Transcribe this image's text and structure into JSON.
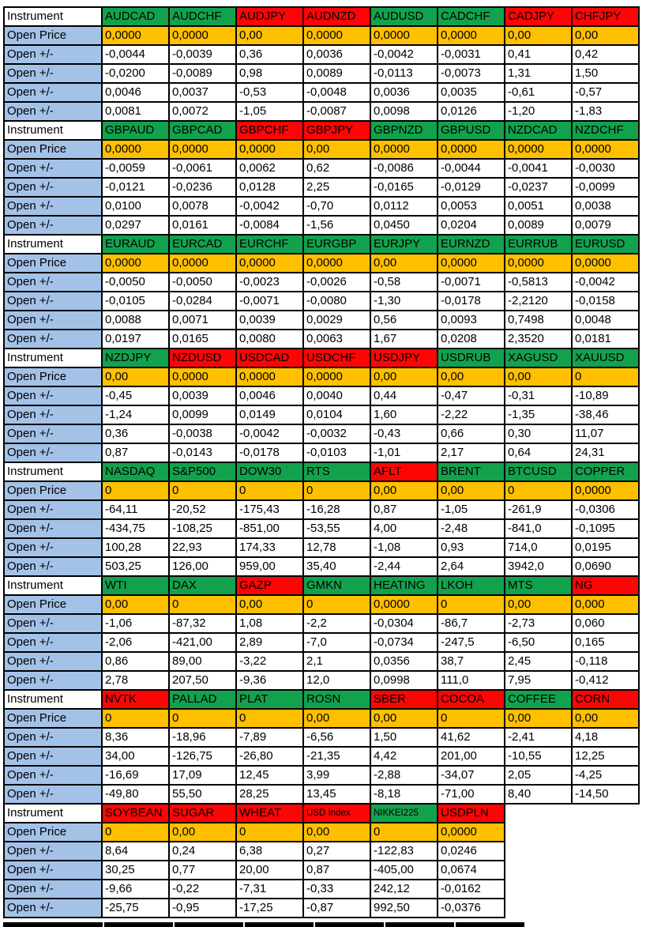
{
  "labels": {
    "instrument": "Instrument",
    "open_price": "Open Price",
    "open_delta": "Open +/-"
  },
  "colors": {
    "green": "#12A24D",
    "red": "#FB0505",
    "orange": "#FFC000",
    "blue": "#A4C2E8",
    "white": "#FFFFFF",
    "border": "#000000"
  },
  "blocks": [
    {
      "instruments": [
        {
          "name": "AUDCAD",
          "color": "green",
          "open_price": "0,0000",
          "deltas": [
            "-0,0044",
            "-0,0200",
            "0,0046",
            "0,0081"
          ]
        },
        {
          "name": "AUDCHF",
          "color": "green",
          "open_price": "0,0000",
          "deltas": [
            "-0,0039",
            "-0,0089",
            "0,0037",
            "0,0072"
          ]
        },
        {
          "name": "AUDJPY",
          "color": "red",
          "open_price": "0,00",
          "deltas": [
            "0,36",
            "0,98",
            "-0,53",
            "-1,05"
          ]
        },
        {
          "name": "AUDNZD",
          "color": "red",
          "open_price": "0,0000",
          "deltas": [
            "0,0036",
            "0,0089",
            "-0,0048",
            "-0,0087"
          ]
        },
        {
          "name": "AUDUSD",
          "color": "green",
          "open_price": "0,0000",
          "deltas": [
            "-0,0042",
            "-0,0113",
            "0,0036",
            "0,0098"
          ]
        },
        {
          "name": "CADCHF",
          "color": "green",
          "open_price": "0,0000",
          "deltas": [
            "-0,0031",
            "-0,0073",
            "0,0035",
            "0,0126"
          ]
        },
        {
          "name": "CADJPY",
          "color": "red",
          "open_price": "0,00",
          "deltas": [
            "0,41",
            "1,31",
            "-0,61",
            "-1,20"
          ]
        },
        {
          "name": "CHFJPY",
          "color": "red",
          "open_price": "0,00",
          "deltas": [
            "0,42",
            "1,50",
            "-0,57",
            "-1,83"
          ]
        }
      ]
    },
    {
      "instruments": [
        {
          "name": "GBPAUD",
          "color": "green",
          "open_price": "0,0000",
          "deltas": [
            "-0,0059",
            "-0,0121",
            "0,0100",
            "0,0297"
          ]
        },
        {
          "name": "GBPCAD",
          "color": "green",
          "open_price": "0,0000",
          "deltas": [
            "-0,0061",
            "-0,0236",
            "0,0078",
            "0,0161"
          ]
        },
        {
          "name": "GBPCHF",
          "color": "red",
          "open_price": "0,0000",
          "deltas": [
            "0,0062",
            "0,0128",
            "-0,0042",
            "-0,0084"
          ]
        },
        {
          "name": "GBPJPY",
          "color": "red",
          "open_price": "0,00",
          "deltas": [
            "0,62",
            "2,25",
            "-0,70",
            "-1,56"
          ]
        },
        {
          "name": "GBPNZD",
          "color": "green",
          "open_price": "0,0000",
          "deltas": [
            "-0,0086",
            "-0,0165",
            "0,0112",
            "0,0450"
          ]
        },
        {
          "name": "GBPUSD",
          "color": "green",
          "open_price": "0,0000",
          "deltas": [
            "-0,0044",
            "-0,0129",
            "0,0053",
            "0,0204"
          ]
        },
        {
          "name": "NZDCAD",
          "color": "green",
          "open_price": "0,0000",
          "deltas": [
            "-0,0041",
            "-0,0237",
            "0,0051",
            "0,0089"
          ]
        },
        {
          "name": "NZDCHF",
          "color": "green",
          "open_price": "0,0000",
          "deltas": [
            "-0,0030",
            "-0,0099",
            "0,0038",
            "0,0079"
          ]
        }
      ]
    },
    {
      "instruments": [
        {
          "name": "EURAUD",
          "color": "green",
          "open_price": "0,0000",
          "deltas": [
            "-0,0050",
            "-0,0105",
            "0,0088",
            "0,0197"
          ]
        },
        {
          "name": "EURCAD",
          "color": "green",
          "open_price": "0,0000",
          "deltas": [
            "-0,0050",
            "-0,0284",
            "0,0071",
            "0,0165"
          ]
        },
        {
          "name": "EURCHF",
          "color": "green",
          "open_price": "0,0000",
          "deltas": [
            "-0,0023",
            "-0,0071",
            "0,0039",
            "0,0080"
          ]
        },
        {
          "name": "EURGBP",
          "color": "green",
          "open_price": "0,0000",
          "deltas": [
            "-0,0026",
            "-0,0080",
            "0,0029",
            "0,0063"
          ]
        },
        {
          "name": "EURJPY",
          "color": "green",
          "open_price": "0,00",
          "deltas": [
            "-0,58",
            "-1,30",
            "0,56",
            "1,67"
          ]
        },
        {
          "name": "EURNZD",
          "color": "green",
          "open_price": "0,0000",
          "deltas": [
            "-0,0071",
            "-0,0178",
            "0,0093",
            "0,0208"
          ]
        },
        {
          "name": "EURRUB",
          "color": "green",
          "open_price": "0,0000",
          "deltas": [
            "-0,5813",
            "-2,2120",
            "0,7498",
            "2,3520"
          ]
        },
        {
          "name": "EURUSD",
          "color": "green",
          "open_price": "0,0000",
          "deltas": [
            "-0,0042",
            "-0,0158",
            "0,0048",
            "0,0181"
          ]
        }
      ]
    },
    {
      "instruments": [
        {
          "name": "NZDJPY",
          "color": "green",
          "open_price": "0,00",
          "deltas": [
            "-0,45",
            "-1,24",
            "0,36",
            "0,87"
          ]
        },
        {
          "name": "NZDUSD",
          "color": "red",
          "open_price": "0,0000",
          "deltas": [
            "0,0039",
            "0,0099",
            "-0,0038",
            "-0,0143"
          ]
        },
        {
          "name": "USDCAD",
          "color": "red",
          "open_price": "0,0000",
          "deltas": [
            "0,0046",
            "0,0149",
            "-0,0042",
            "-0,0178"
          ]
        },
        {
          "name": "USDCHF",
          "color": "red",
          "open_price": "0,0000",
          "deltas": [
            "0,0040",
            "0,0104",
            "-0,0032",
            "-0,0103"
          ]
        },
        {
          "name": "USDJPY",
          "color": "red",
          "open_price": "0,00",
          "deltas": [
            "0,44",
            "1,60",
            "-0,43",
            "-1,01"
          ]
        },
        {
          "name": "USDRUB",
          "color": "green",
          "open_price": "0,00",
          "deltas": [
            "-0,47",
            "-2,22",
            "0,66",
            "2,17"
          ]
        },
        {
          "name": "XAGUSD",
          "color": "green",
          "open_price": "0,00",
          "deltas": [
            "-0,31",
            "-1,35",
            "0,30",
            "0,64"
          ]
        },
        {
          "name": "XAUUSD",
          "color": "green",
          "open_price": "0",
          "deltas": [
            "-10,89",
            "-38,46",
            "11,07",
            "24,31"
          ]
        }
      ]
    },
    {
      "instruments": [
        {
          "name": "NASDAQ",
          "color": "green",
          "open_price": "0",
          "deltas": [
            "-64,11",
            "-434,75",
            "100,28",
            "503,25"
          ]
        },
        {
          "name": "S&P500",
          "color": "green",
          "open_price": "0",
          "deltas": [
            "-20,52",
            "-108,25",
            "22,93",
            "126,00"
          ]
        },
        {
          "name": "DOW30",
          "color": "green",
          "open_price": "0",
          "deltas": [
            "-175,43",
            "-851,00",
            "174,33",
            "959,00"
          ]
        },
        {
          "name": "RTS",
          "color": "green",
          "open_price": "0",
          "deltas": [
            "-16,28",
            "-53,55",
            "12,78",
            "35,40"
          ]
        },
        {
          "name": "AFLT",
          "color": "red",
          "open_price": "0,00",
          "deltas": [
            "0,87",
            "4,00",
            "-1,08",
            "-2,44"
          ]
        },
        {
          "name": "BRENT",
          "color": "green",
          "open_price": "0,00",
          "deltas": [
            "-1,05",
            "-2,48",
            "0,93",
            "2,64"
          ]
        },
        {
          "name": "BTCUSD",
          "color": "green",
          "open_price": "0",
          "deltas": [
            "-261,9",
            "-841,0",
            "714,0",
            "3942,0"
          ]
        },
        {
          "name": "COPPER",
          "color": "green",
          "open_price": "0,0000",
          "deltas": [
            "-0,0306",
            "-0,1095",
            "0,0195",
            "0,0690"
          ]
        }
      ]
    },
    {
      "instruments": [
        {
          "name": "WTI",
          "color": "green",
          "open_price": "0,00",
          "deltas": [
            "-1,06",
            "-2,06",
            "0,86",
            "2,78"
          ]
        },
        {
          "name": "DAX",
          "color": "green",
          "open_price": "0",
          "deltas": [
            "-87,32",
            "-421,00",
            "89,00",
            "207,50"
          ]
        },
        {
          "name": "GAZP",
          "color": "red",
          "open_price": "0,00",
          "deltas": [
            "1,08",
            "2,89",
            "-3,22",
            "-9,36"
          ]
        },
        {
          "name": "GMKN",
          "color": "green",
          "open_price": "0",
          "deltas": [
            "-2,2",
            "-7,0",
            "2,1",
            "12,0"
          ]
        },
        {
          "name": "HEATING",
          "color": "green",
          "open_price": "0,0000",
          "deltas": [
            "-0,0304",
            "-0,0734",
            "0,0356",
            "0,0998"
          ]
        },
        {
          "name": "LKOH",
          "color": "green",
          "open_price": "0",
          "deltas": [
            "-86,7",
            "-247,5",
            "38,7",
            "111,0"
          ]
        },
        {
          "name": "MTS",
          "color": "green",
          "open_price": "0,00",
          "deltas": [
            "-2,73",
            "-6,50",
            "2,45",
            "7,95"
          ]
        },
        {
          "name": "NG",
          "color": "red",
          "open_price": "0,000",
          "deltas": [
            "0,060",
            "0,165",
            "-0,118",
            "-0,412"
          ]
        }
      ]
    },
    {
      "instruments": [
        {
          "name": "NVTK",
          "color": "red",
          "open_price": "0",
          "deltas": [
            "8,36",
            "34,00",
            "-16,69",
            "-49,80"
          ]
        },
        {
          "name": "PALLAD",
          "color": "green",
          "open_price": "0",
          "deltas": [
            "-18,96",
            "-126,75",
            "17,09",
            "55,50"
          ]
        },
        {
          "name": "PLAT",
          "color": "green",
          "open_price": "0",
          "deltas": [
            "-7,89",
            "-26,80",
            "12,45",
            "28,25"
          ]
        },
        {
          "name": "ROSN",
          "color": "green",
          "open_price": "0,00",
          "deltas": [
            "-6,56",
            "-21,35",
            "3,99",
            "13,45"
          ]
        },
        {
          "name": "SBER",
          "color": "red",
          "open_price": "0,00",
          "deltas": [
            "1,50",
            "4,42",
            "-2,88",
            "-8,18"
          ]
        },
        {
          "name": "COCOA",
          "color": "red",
          "open_price": "0",
          "deltas": [
            "41,62",
            "201,00",
            "-34,07",
            "-71,00"
          ]
        },
        {
          "name": "COFFEE",
          "color": "green",
          "open_price": "0,00",
          "deltas": [
            "-2,41",
            "-10,55",
            "2,05",
            "8,40"
          ]
        },
        {
          "name": "CORN",
          "color": "red",
          "open_price": "0,00",
          "deltas": [
            "4,18",
            "12,25",
            "-4,25",
            "-14,50"
          ]
        }
      ]
    },
    {
      "instruments": [
        {
          "name": "SOYBEAN",
          "color": "red",
          "open_price": "0",
          "deltas": [
            "8,64",
            "30,25",
            "-9,66",
            "-25,75"
          ]
        },
        {
          "name": "SUGAR",
          "color": "red",
          "open_price": "0,00",
          "deltas": [
            "0,24",
            "0,77",
            "-0,22",
            "-0,95"
          ]
        },
        {
          "name": "WHEAT",
          "color": "red",
          "open_price": "0",
          "deltas": [
            "6,38",
            "20,00",
            "-7,31",
            "-17,25"
          ]
        },
        {
          "name": "USD Index",
          "color": "red",
          "small": true,
          "open_price": "0,00",
          "deltas": [
            "0,27",
            "0,87",
            "-0,33",
            "-0,87"
          ]
        },
        {
          "name": "NIKKEI225",
          "color": "green",
          "small": true,
          "open_price": "0",
          "deltas": [
            "-122,83",
            "-405,00",
            "242,12",
            "992,50"
          ]
        },
        {
          "name": "USDPLN",
          "color": "red",
          "open_price": "0,0000",
          "deltas": [
            "0,0246",
            "0,0674",
            "-0,0162",
            "-0,0376"
          ]
        }
      ]
    }
  ]
}
